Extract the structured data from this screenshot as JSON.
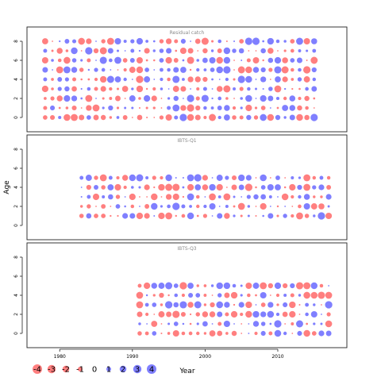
{
  "chart_data": {
    "type": "bubble-residuals",
    "xlabel": "Year",
    "ylabel": "Age",
    "x_ticks": [
      1980,
      1990,
      2000,
      2010
    ],
    "xlim": [
      1975.5,
      2019.5
    ],
    "y_ticks": [
      0,
      2,
      4,
      6,
      8
    ],
    "ylim": [
      -1.5,
      9.5
    ],
    "colors": {
      "negative": "#ff0000",
      "positive": "#0000ff"
    },
    "legend": {
      "placement": "bottom-left",
      "values": [
        -4,
        -3,
        -2,
        -1,
        0,
        1,
        2,
        3,
        4
      ],
      "labels": [
        "-4",
        "-3",
        "-2",
        "-1",
        "0",
        "1",
        "2",
        "3",
        "4"
      ]
    },
    "panels": [
      {
        "title": "Residual catch",
        "years": [
          1978,
          2015
        ],
        "ages": [
          0,
          8
        ],
        "residual_seed": 11
      },
      {
        "title": "IBTS-Q1",
        "years": [
          1983,
          2017
        ],
        "ages": [
          1,
          5
        ],
        "residual_seed": 23
      },
      {
        "title": "IBTS-Q3",
        "years": [
          1991,
          2017
        ],
        "ages": [
          0,
          5
        ],
        "residual_seed": 37
      }
    ]
  }
}
